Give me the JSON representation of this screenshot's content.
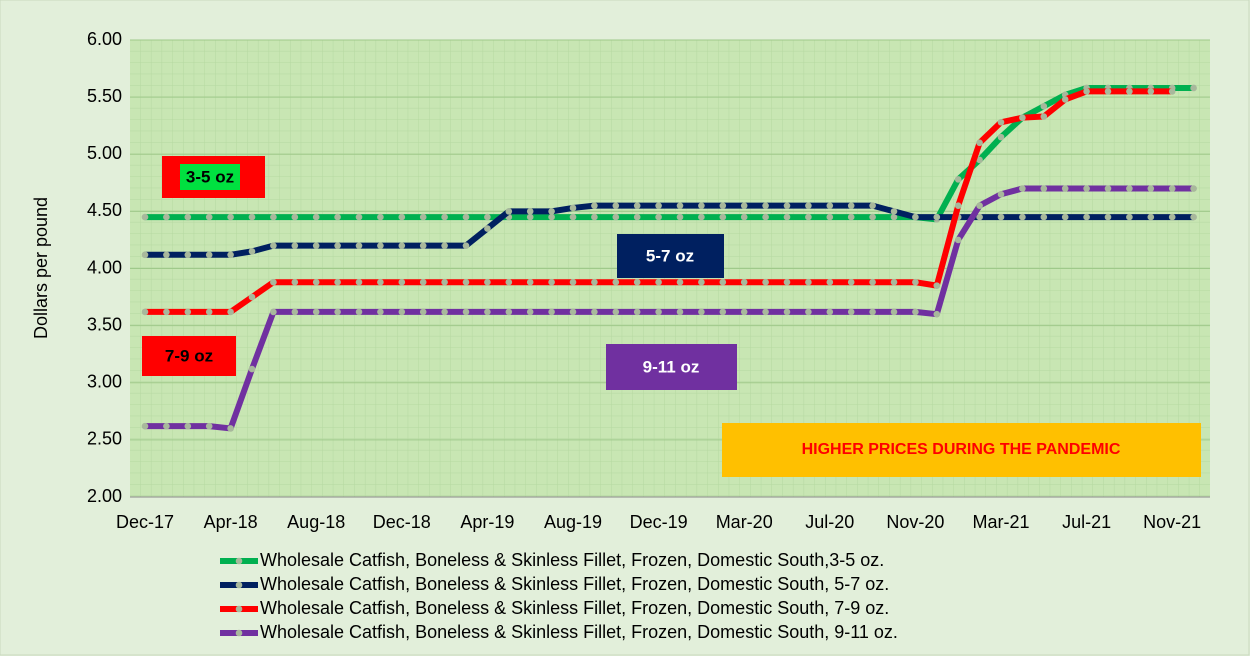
{
  "chart_data": {
    "type": "line",
    "y_axis_label": "Dollars per pound",
    "categories": [
      "Dec-17",
      null,
      null,
      null,
      "Apr-18",
      null,
      null,
      null,
      "Aug-18",
      null,
      null,
      null,
      "Dec-18",
      null,
      null,
      null,
      "Apr-19",
      null,
      null,
      null,
      "Aug-19",
      null,
      null,
      null,
      "Dec-19",
      null,
      null,
      null,
      "Mar-20",
      null,
      null,
      null,
      "Jul-20",
      null,
      null,
      null,
      "Nov-20",
      null,
      null,
      null,
      "Mar-21",
      null,
      null,
      null,
      "Jul-21",
      null,
      null,
      null,
      "Nov-21",
      null
    ],
    "series": [
      {
        "name": "Wholesale Catfish, Boneless & Skinless Fillet, Frozen, Domestic South,3-5 oz.",
        "color": "#00b050",
        "values": [
          4.45,
          4.45,
          4.45,
          4.45,
          4.45,
          4.45,
          4.45,
          4.45,
          4.45,
          4.45,
          4.45,
          4.45,
          4.45,
          4.45,
          4.45,
          4.45,
          4.45,
          4.45,
          4.45,
          4.45,
          4.45,
          4.45,
          4.45,
          4.45,
          4.45,
          4.45,
          4.45,
          4.45,
          4.45,
          4.45,
          4.45,
          4.45,
          4.45,
          4.45,
          4.45,
          4.45,
          4.45,
          4.43,
          4.78,
          4.95,
          5.15,
          5.32,
          5.42,
          5.52,
          5.58,
          5.58,
          5.58,
          5.58,
          5.58,
          5.58
        ]
      },
      {
        "name": "Wholesale Catfish, Boneless & Skinless Fillet, Frozen, Domestic South, 5-7 oz.",
        "color": "#002060",
        "values": [
          4.12,
          4.12,
          4.12,
          4.12,
          4.12,
          4.15,
          4.2,
          4.2,
          4.2,
          4.2,
          4.2,
          4.2,
          4.2,
          4.2,
          4.2,
          4.2,
          4.35,
          4.5,
          4.5,
          4.5,
          4.53,
          4.55,
          4.55,
          4.55,
          4.55,
          4.55,
          4.55,
          4.55,
          4.55,
          4.55,
          4.55,
          4.55,
          4.55,
          4.55,
          4.55,
          4.5,
          4.45,
          4.45,
          4.45,
          4.45,
          4.45,
          4.45,
          4.45,
          4.45,
          4.45,
          4.45,
          4.45,
          4.45,
          4.45,
          4.45
        ]
      },
      {
        "name": "Wholesale Catfish, Boneless & Skinless Fillet, Frozen, Domestic South, 7-9 oz.",
        "color": "#ff0000",
        "values": [
          3.62,
          3.62,
          3.62,
          3.62,
          3.62,
          3.75,
          3.88,
          3.88,
          3.88,
          3.88,
          3.88,
          3.88,
          3.88,
          3.88,
          3.88,
          3.88,
          3.88,
          3.88,
          3.88,
          3.88,
          3.88,
          3.88,
          3.88,
          3.88,
          3.88,
          3.88,
          3.88,
          3.88,
          3.88,
          3.88,
          3.88,
          3.88,
          3.88,
          3.88,
          3.88,
          3.88,
          3.88,
          3.85,
          4.55,
          5.1,
          5.28,
          5.32,
          5.33,
          5.48,
          5.55,
          5.55,
          5.55,
          5.55,
          5.55,
          null
        ]
      },
      {
        "name": "Wholesale Catfish, Boneless & Skinless Fillet, Frozen, Domestic South, 9-11 oz.",
        "color": "#7030a0",
        "values": [
          2.62,
          2.62,
          2.62,
          2.62,
          2.6,
          3.12,
          3.62,
          3.62,
          3.62,
          3.62,
          3.62,
          3.62,
          3.62,
          3.62,
          3.62,
          3.62,
          3.62,
          3.62,
          3.62,
          3.62,
          3.62,
          3.62,
          3.62,
          3.62,
          3.62,
          3.62,
          3.62,
          3.62,
          3.62,
          3.62,
          3.62,
          3.62,
          3.62,
          3.62,
          3.62,
          3.62,
          3.62,
          3.6,
          4.25,
          4.55,
          4.65,
          4.7,
          4.7,
          4.7,
          4.7,
          4.7,
          4.7,
          4.7,
          4.7,
          4.7
        ]
      }
    ],
    "marker_color": "#a8b89c",
    "ylim": [
      2,
      6
    ],
    "yticks": [
      {
        "value": 2,
        "label": "2.00"
      },
      {
        "value": 2.5,
        "label": "2.50"
      },
      {
        "value": 3,
        "label": "3.00"
      },
      {
        "value": 3.5,
        "label": "3.50"
      },
      {
        "value": 4,
        "label": "4.00"
      },
      {
        "value": 4.5,
        "label": "4.50"
      },
      {
        "value": 5,
        "label": "5.00"
      },
      {
        "value": 5.5,
        "label": "5.50"
      },
      {
        "value": 6,
        "label": "6.00"
      }
    ],
    "grid": true,
    "legend_position": "bottom",
    "annotations": [
      "3-5 oz",
      "5-7 oz",
      "7-9 oz",
      "9-11 oz",
      "HIGHER PRICES DURING THE PANDEMIC"
    ]
  }
}
